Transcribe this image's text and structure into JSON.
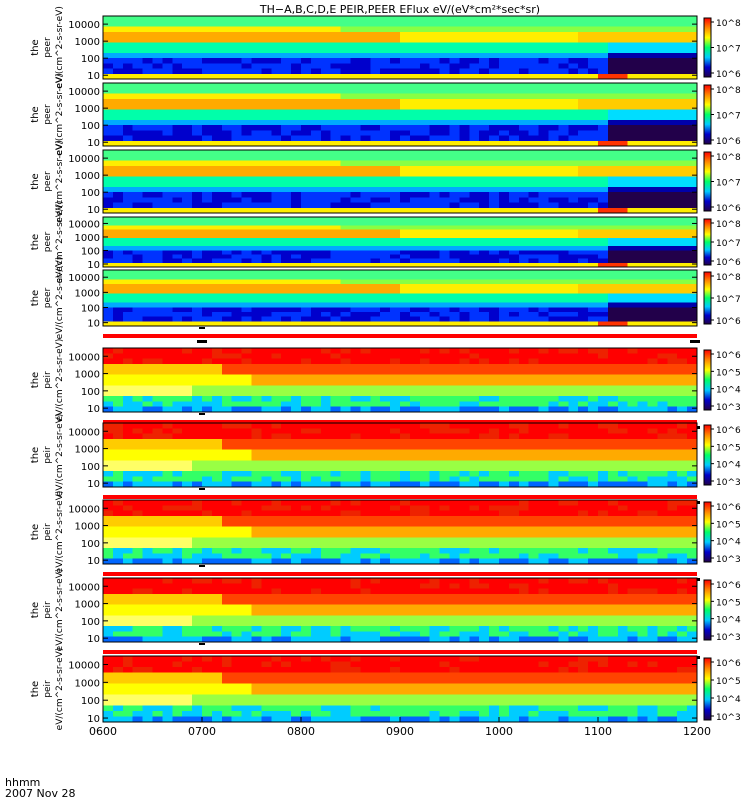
{
  "title": "TH−A,B,C,D,E PEIR,PEER EFlux eV/(eV*cm²*sec*sr)",
  "footer": {
    "line1": "hhmm",
    "line2": "2007 Nov 28"
  },
  "colors": {
    "frame": "#000000",
    "flag_bar": "#ff0000",
    "colormap": [
      "#ff0000",
      "#ff8800",
      "#ffff00",
      "#00ff66",
      "#00ccff",
      "#0000cc",
      "#22004a"
    ]
  },
  "chart_data": {
    "type": "heatmap",
    "x_ticks": [
      "0600",
      "0700",
      "0800",
      "0900",
      "1000",
      "1100",
      "1200"
    ],
    "xlim": [
      "0600",
      "1200"
    ],
    "y_scale": "log",
    "ylim": [
      6,
      30000
    ],
    "y_ticks": [
      "10",
      "100",
      "1000",
      "10000"
    ],
    "panels": [
      {
        "group": "peer",
        "ylabel_lines": [
          "the",
          "peer",
          "eV/(cm^2-s-sr-eV)"
        ],
        "cbar_ticks": [
          "10^8",
          "10^7",
          "10^6"
        ],
        "flag_bar": false
      },
      {
        "group": "peer",
        "ylabel_lines": [
          "the",
          "peer",
          "eV/(cm^2-s-sr-eV)"
        ],
        "cbar_ticks": [
          "10^8",
          "10^7",
          "10^6"
        ],
        "flag_bar": false
      },
      {
        "group": "peer",
        "ylabel_lines": [
          "the",
          "peer",
          "eV/(cm^2-s-sr-eV)"
        ],
        "cbar_ticks": [
          "10^8",
          "10^7",
          "10^6"
        ],
        "flag_bar": false
      },
      {
        "group": "peer",
        "ylabel_lines": [
          "the",
          "peer",
          "eV/(cm^2-s-sr-eV)"
        ],
        "cbar_ticks": [
          "10^8",
          "10^7",
          "10^6"
        ],
        "flag_bar": false
      },
      {
        "group": "peer",
        "ylabel_lines": [
          "the",
          "peer",
          "eV/(cm^2-s-sr-eV)"
        ],
        "cbar_ticks": [
          "10^8",
          "10^7",
          "10^6"
        ],
        "flag_bar": true
      },
      {
        "group": "peir",
        "ylabel_lines": [
          "the",
          "peir",
          "eV/(cm^2-s-sr-eV)"
        ],
        "cbar_ticks": [
          "10^6",
          "10^5",
          "10^4",
          "10^3"
        ],
        "flag_bar": true
      },
      {
        "group": "peir",
        "ylabel_lines": [
          "the",
          "peir",
          "eV/(cm^2-s-sr-eV)"
        ],
        "cbar_ticks": [
          "10^6",
          "10^5",
          "10^4",
          "10^3"
        ],
        "flag_bar": true
      },
      {
        "group": "peir",
        "ylabel_lines": [
          "the",
          "peir",
          "eV/(cm^2-s-sr-eV)"
        ],
        "cbar_ticks": [
          "10^6",
          "10^5",
          "10^4",
          "10^3"
        ],
        "flag_bar": true
      },
      {
        "group": "peir",
        "ylabel_lines": [
          "the",
          "peir",
          "eV/(cm^2-s-sr-eV)"
        ],
        "cbar_ticks": [
          "10^6",
          "10^5",
          "10^4",
          "10^3"
        ],
        "flag_bar": true
      },
      {
        "group": "peir",
        "ylabel_lines": [
          "the",
          "peir",
          "eV/(cm^2-s-sr-eV)"
        ],
        "cbar_ticks": [
          "10^6",
          "10^5",
          "10^4",
          "10^3"
        ],
        "flag_bar": false
      }
    ]
  }
}
